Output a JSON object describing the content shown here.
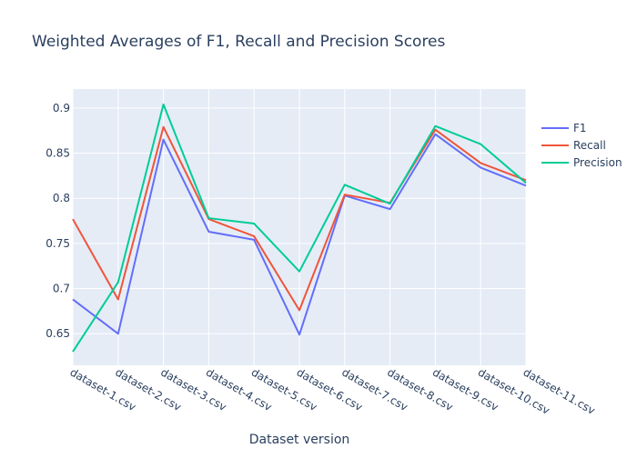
{
  "chart_data": {
    "type": "line",
    "title": "Weighted Averages of F1, Recall and Precision Scores",
    "xlabel": "Dataset version",
    "ylabel": "",
    "categories": [
      "dataset-1.csv",
      "dataset-2.csv",
      "dataset-3.csv",
      "dataset-4.csv",
      "dataset-5.csv",
      "dataset-6.csv",
      "dataset-7.csv",
      "dataset-8.csv",
      "dataset-9.csv",
      "dataset-10.csv",
      "dataset-11.csv"
    ],
    "yticks": [
      0.65,
      0.7,
      0.75,
      0.8,
      0.85,
      0.9
    ],
    "ytick_labels": [
      "0.65",
      "0.7",
      "0.75",
      "0.8",
      "0.85",
      "0.9"
    ],
    "ylim": [
      0.615,
      0.921
    ],
    "grid": true,
    "legend_position": "top-right",
    "series": [
      {
        "name": "F1",
        "color": "#636efa",
        "values": [
          0.688,
          0.65,
          0.865,
          0.763,
          0.754,
          0.649,
          0.803,
          0.788,
          0.871,
          0.834,
          0.814
        ]
      },
      {
        "name": "Recall",
        "color": "#EF553B",
        "values": [
          0.777,
          0.688,
          0.879,
          0.777,
          0.758,
          0.676,
          0.804,
          0.795,
          0.876,
          0.839,
          0.82
        ]
      },
      {
        "name": "Precision",
        "color": "#00cc96",
        "values": [
          0.63,
          0.707,
          0.904,
          0.778,
          0.772,
          0.719,
          0.815,
          0.794,
          0.88,
          0.86,
          0.817
        ]
      }
    ]
  }
}
